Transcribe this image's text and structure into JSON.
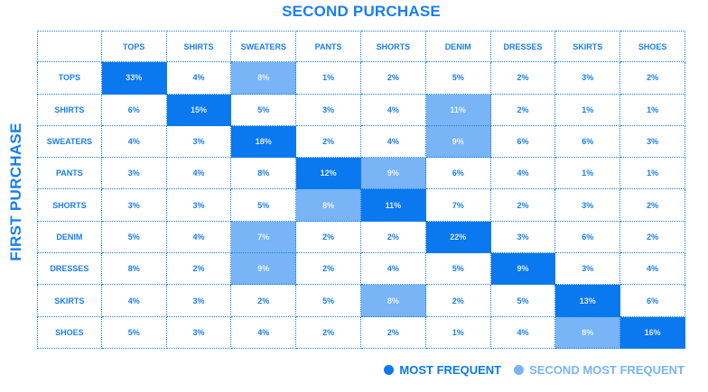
{
  "chart_data": {
    "type": "heatmap",
    "title": "SECOND PURCHASE",
    "xlabel": "SECOND PURCHASE",
    "ylabel": "FIRST PURCHASE",
    "columns": [
      "TOPS",
      "SHIRTS",
      "SWEATERS",
      "PANTS",
      "SHORTS",
      "DENIM",
      "DRESSES",
      "SKIRTS",
      "SHOES"
    ],
    "rows": [
      "TOPS",
      "SHIRTS",
      "SWEATERS",
      "PANTS",
      "SHORTS",
      "DENIM",
      "DRESSES",
      "SKIRTS",
      "SHOES"
    ],
    "values": [
      [
        33,
        4,
        8,
        1,
        2,
        5,
        2,
        3,
        2
      ],
      [
        6,
        15,
        5,
        3,
        4,
        11,
        2,
        1,
        1
      ],
      [
        4,
        3,
        18,
        2,
        4,
        9,
        6,
        6,
        3
      ],
      [
        3,
        4,
        8,
        12,
        9,
        6,
        4,
        1,
        1
      ],
      [
        3,
        3,
        5,
        8,
        11,
        7,
        2,
        3,
        2
      ],
      [
        5,
        4,
        7,
        2,
        2,
        22,
        3,
        6,
        2
      ],
      [
        8,
        2,
        9,
        2,
        4,
        5,
        9,
        3,
        4
      ],
      [
        4,
        3,
        2,
        5,
        8,
        2,
        5,
        13,
        6
      ],
      [
        5,
        3,
        4,
        2,
        2,
        1,
        4,
        8,
        16
      ]
    ],
    "highlight": [
      [
        "most",
        null,
        "second",
        null,
        null,
        null,
        null,
        null,
        null
      ],
      [
        null,
        "most",
        null,
        null,
        null,
        "second",
        null,
        null,
        null
      ],
      [
        null,
        null,
        "most",
        null,
        null,
        "second",
        null,
        null,
        null
      ],
      [
        null,
        null,
        null,
        "most",
        "second",
        null,
        null,
        null,
        null
      ],
      [
        null,
        null,
        null,
        "second",
        "most",
        null,
        null,
        null,
        null
      ],
      [
        null,
        null,
        "second",
        null,
        null,
        "most",
        null,
        null,
        null
      ],
      [
        null,
        null,
        "second",
        null,
        null,
        null,
        "most",
        null,
        null
      ],
      [
        null,
        null,
        null,
        null,
        "second",
        null,
        null,
        "most",
        null
      ],
      [
        null,
        null,
        null,
        null,
        null,
        null,
        null,
        "second",
        "most"
      ]
    ],
    "unit": "%",
    "legend": [
      {
        "label": "MOST FREQUENT",
        "color": "#0a78ef"
      },
      {
        "label": "SECOND MOST FREQUENT",
        "color": "#78b4f6"
      }
    ],
    "legend_position": "bottom-right"
  },
  "labels": {
    "top_title": "SECOND PURCHASE",
    "side_title": "FIRST PURCHASE"
  },
  "colors": {
    "accent": "#1a7ff0",
    "most": "#0a78ef",
    "second": "#78b4f6"
  }
}
